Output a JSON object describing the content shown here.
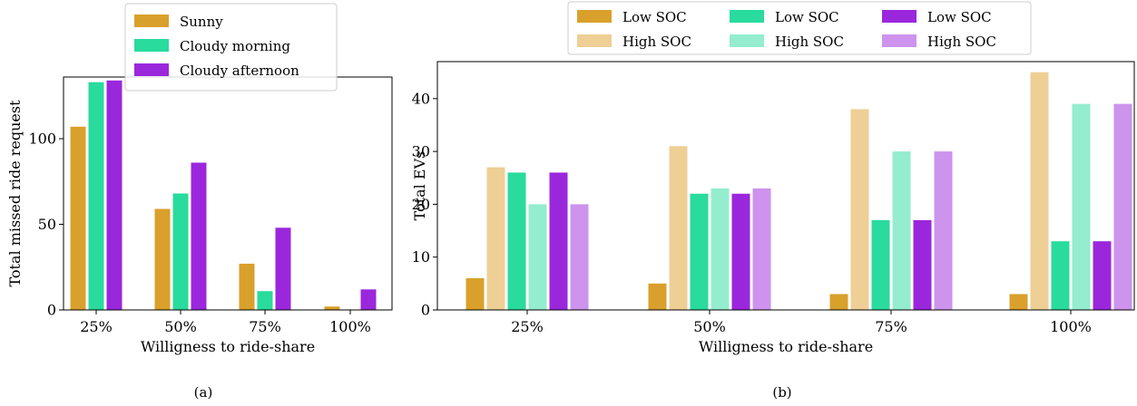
{
  "chart_data": [
    {
      "type": "bar",
      "panel_label": "(a)",
      "xlabel": "Willigness to ride-share",
      "ylabel": "Total missed ride request",
      "categories": [
        "25%",
        "50%",
        "75%",
        "100%"
      ],
      "ylim": [
        0,
        136
      ],
      "yticks": [
        0,
        50,
        100
      ],
      "grid": false,
      "legend_position": "top (above plot)",
      "series": [
        {
          "name": "Sunny",
          "color": "#DAA02C",
          "values": [
            107,
            59,
            27,
            2
          ]
        },
        {
          "name": "Cloudy morning",
          "color": "#29DB9D",
          "values": [
            133,
            68,
            11,
            0
          ]
        },
        {
          "name": "Cloudy afternoon",
          "color": "#9B27DC",
          "values": [
            134,
            86,
            48,
            12
          ]
        }
      ]
    },
    {
      "type": "bar",
      "panel_label": "(b)",
      "xlabel": "Willigness to ride-share",
      "ylabel": "Total EVs",
      "categories": [
        "25%",
        "50%",
        "75%",
        "100%"
      ],
      "ylim": [
        0,
        47
      ],
      "yticks": [
        0,
        10,
        20,
        30,
        40
      ],
      "grid": false,
      "legend_position": "top (above plot, 3 columns)",
      "series": [
        {
          "name": "Low SOC",
          "color": "#DAA02C",
          "values": [
            6,
            5,
            3,
            3
          ]
        },
        {
          "name": "High SOC",
          "color": "#EECF95",
          "values": [
            27,
            31,
            38,
            45
          ]
        },
        {
          "name": "Low SOC",
          "color": "#29DB9D",
          "values": [
            26,
            22,
            17,
            13
          ]
        },
        {
          "name": "High SOC",
          "color": "#94EDCE",
          "values": [
            20,
            23,
            30,
            39
          ]
        },
        {
          "name": "Low SOC",
          "color": "#9B27DC",
          "values": [
            26,
            22,
            17,
            13
          ]
        },
        {
          "name": "High SOC",
          "color": "#CD93ED",
          "values": [
            20,
            23,
            30,
            39
          ]
        }
      ]
    }
  ]
}
